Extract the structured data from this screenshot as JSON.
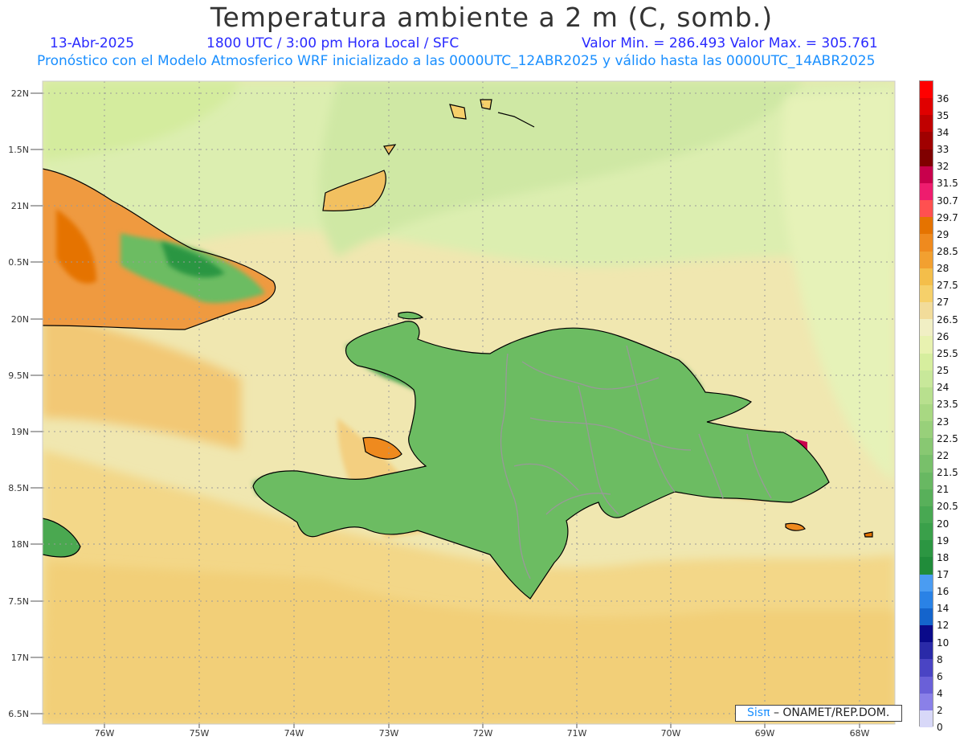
{
  "header": {
    "title": "Temperatura ambiente a 2 m (C, somb.)",
    "date": "13-Abr-2025",
    "time": "1800 UTC / 3:00 pm Hora Local / SFC",
    "minmax": "Valor Min. = 286.493  Valor Max. = 305.761",
    "model_line": "Pronóstico con el Modelo Atmosferico WRF inicializado a las 0000UTC_12ABR2025 y válido hasta las  0000UTC_14ABR2025"
  },
  "map": {
    "lat_labels": [
      "22N",
      "1.5N",
      "21N",
      "0.5N",
      "20N",
      "9.5N",
      "19N",
      "8.5N",
      "18N",
      "7.5N",
      "17N",
      "6.5N"
    ],
    "lon_labels": [
      "76W",
      "75W",
      "74W",
      "73W",
      "72W",
      "71W",
      "70W",
      "69W",
      "68W"
    ],
    "credit_sis": "Sisπ",
    "credit_org": " – ONAMET/REP.DOM."
  },
  "legend": {
    "labels": [
      "36",
      "35",
      "34",
      "33",
      "32",
      "31.5",
      "30.7",
      "29.7",
      "29",
      "28.5",
      "28",
      "27.5",
      "27",
      "26.5",
      "26",
      "25.5",
      "25",
      "24",
      "23.5",
      "23",
      "22.5",
      "22",
      "21.5",
      "21",
      "20.5",
      "20",
      "19",
      "18",
      "17",
      "16",
      "14",
      "12",
      "10",
      "8",
      "6",
      "4",
      "2",
      "0"
    ],
    "colors": [
      "#ff0000",
      "#e00000",
      "#c00000",
      "#a00000",
      "#800000",
      "#c8004c",
      "#ee1c6e",
      "#ff5050",
      "#e57300",
      "#ef8a1e",
      "#f2a030",
      "#f4be4a",
      "#f6d06a",
      "#f2dc9a",
      "#f1efc4",
      "#e8f2b0",
      "#d6ee9e",
      "#c8e89a",
      "#b8e08e",
      "#a8d882",
      "#98d07a",
      "#88c872",
      "#78c06a",
      "#68b862",
      "#58b05a",
      "#48a852",
      "#3aa04a",
      "#2c9642",
      "#208c3a",
      "#4a9cf2",
      "#2a82e6",
      "#1464cc",
      "#0a0a8a",
      "#2a2aa8",
      "#4a44c4",
      "#6a60d8",
      "#8a80e8",
      "#d8d8f8"
    ]
  }
}
